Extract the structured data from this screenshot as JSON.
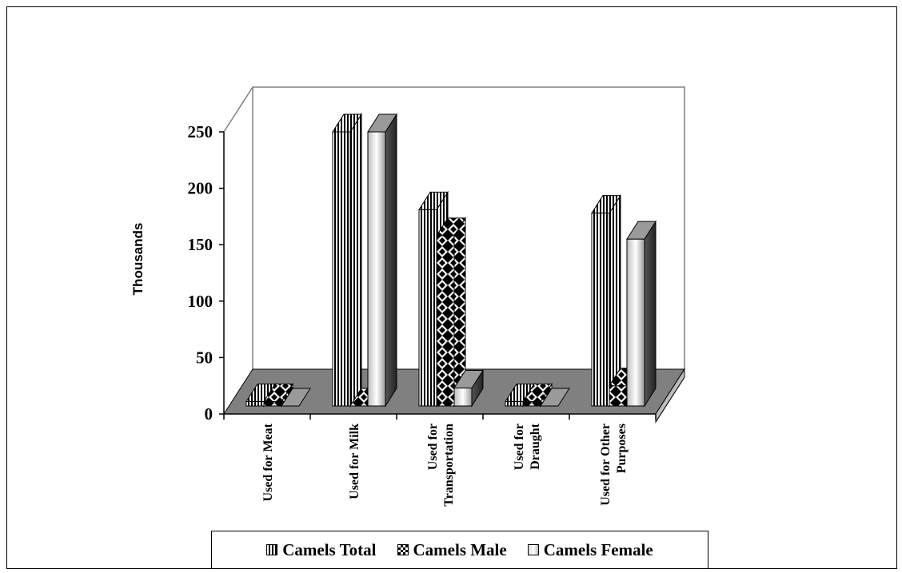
{
  "chart_data": {
    "type": "bar",
    "style": "3d-clustered-column",
    "categories": [
      [
        "Used for Meat"
      ],
      [
        "Used for Milk"
      ],
      [
        "Used for",
        "Transportation"
      ],
      [
        "Used for",
        "Draught"
      ],
      [
        "Used for Other",
        "Purposes"
      ]
    ],
    "series": [
      {
        "name": "Camels Total",
        "values": [
          11,
          250,
          181,
          11,
          178
        ]
      },
      {
        "name": "Camels Male",
        "values": [
          11,
          0,
          158,
          11,
          25
        ]
      },
      {
        "name": "Camels Female",
        "values": [
          0,
          250,
          23,
          0,
          155
        ]
      }
    ],
    "ylabel": "Thousands",
    "xlabel": "",
    "ylim": [
      0,
      250
    ],
    "yticks": [
      "0",
      "50",
      "100",
      "150",
      "200",
      "250"
    ],
    "legend_position": "bottom",
    "grid": false,
    "colors": {
      "floor": "#808080",
      "wall": "#ffffff",
      "axis": "#000000",
      "wall_edge": "#808080"
    }
  }
}
